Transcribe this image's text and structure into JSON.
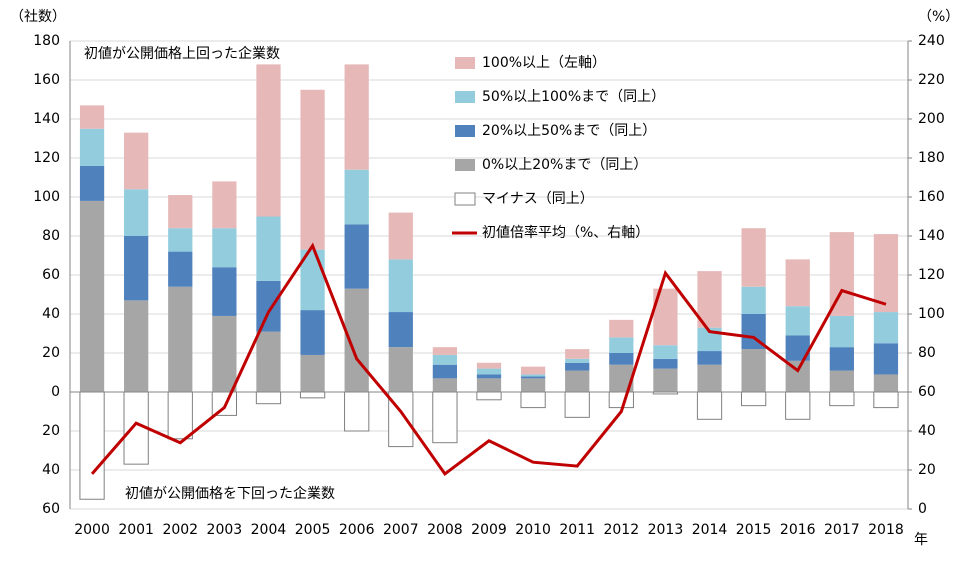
{
  "chart_data": {
    "type": "bar",
    "y_label": "（社数）",
    "y2_label": "（%）",
    "x_label": "年",
    "annotations": [
      "初値が公開価格上回った企業数",
      "初値が公開価格を下回った企業数"
    ],
    "categories": [
      "2000",
      "2001",
      "2002",
      "2003",
      "2004",
      "2005",
      "2006",
      "2007",
      "2008",
      "2009",
      "2010",
      "2011",
      "2012",
      "2013",
      "2014",
      "2015",
      "2016",
      "2017",
      "2018"
    ],
    "series": [
      {
        "name": "100%以上（左軸）",
        "color": "#e6b9b8",
        "values": [
          12,
          29,
          17,
          24,
          78,
          82,
          54,
          24,
          4,
          3,
          4,
          5,
          9,
          29,
          29,
          30,
          24,
          43,
          40
        ]
      },
      {
        "name": "50%以上100%まで（同上）",
        "color": "#93cddd",
        "values": [
          19,
          24,
          12,
          20,
          33,
          31,
          28,
          27,
          5,
          3,
          1,
          2,
          8,
          7,
          12,
          14,
          15,
          16,
          16
        ]
      },
      {
        "name": "20%以上50%まで（同上）",
        "color": "#4f81bd",
        "values": [
          18,
          33,
          18,
          25,
          26,
          23,
          33,
          18,
          7,
          2,
          1,
          4,
          6,
          5,
          7,
          18,
          13,
          12,
          16
        ]
      },
      {
        "name": "0%以上20%まで（同上）",
        "color": "#a6a6a6",
        "values": [
          98,
          47,
          54,
          39,
          31,
          19,
          53,
          23,
          7,
          7,
          7,
          11,
          14,
          12,
          14,
          22,
          16,
          11,
          9
        ]
      },
      {
        "name": "マイナス（同上）",
        "color": "#ffffff",
        "values": [
          -55,
          -37,
          -24,
          -12,
          -6,
          -3,
          -20,
          -28,
          -26,
          -4,
          -8,
          -13,
          -8,
          -1,
          -14,
          -7,
          -14,
          -7,
          -8
        ]
      },
      {
        "name": "初値倍率平均（%、右軸）",
        "color": "#c00000",
        "axis": "y2",
        "type": "line",
        "values": [
          18,
          44,
          34,
          52,
          101,
          135,
          77,
          50,
          18,
          35,
          24,
          22,
          50,
          121,
          91,
          88,
          71,
          112,
          105
        ]
      }
    ],
    "ylim": [
      -60,
      180
    ],
    "yticks": [
      {
        "value": -60,
        "label": "60"
      },
      {
        "value": -40,
        "label": "40"
      },
      {
        "value": -20,
        "label": "20"
      },
      0,
      20,
      40,
      60,
      80,
      100,
      120,
      140,
      160,
      180
    ],
    "y2lim": [
      0,
      240
    ],
    "y2ticks": [
      0,
      20,
      40,
      60,
      80,
      100,
      120,
      140,
      160,
      180,
      200,
      220,
      240
    ],
    "grid": true
  }
}
